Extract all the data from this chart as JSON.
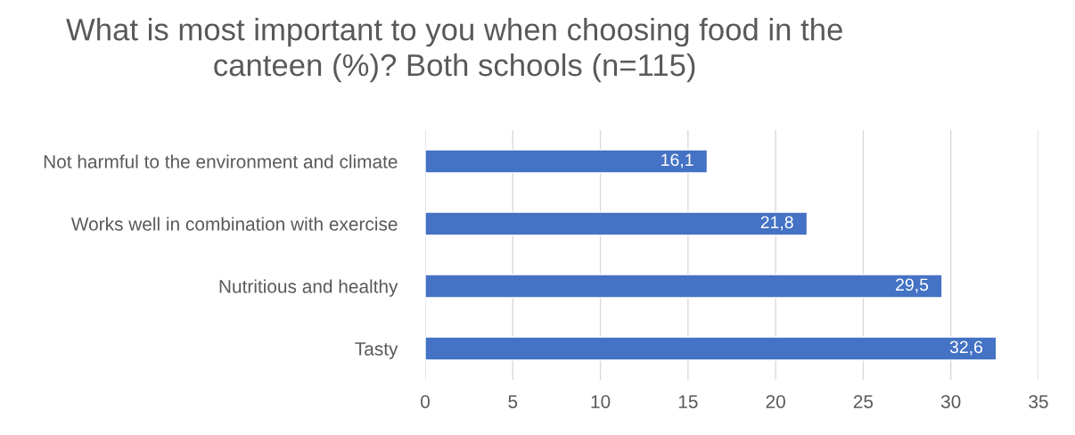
{
  "chart_data": {
    "type": "bar",
    "orientation": "horizontal",
    "title": "What is most important to you when choosing food in the\ncanteen (%)? Both schools (n=115)",
    "categories": [
      "Not harmful to the environment and climate",
      "Works well in combination with exercise",
      "Nutritious and healthy",
      "Tasty"
    ],
    "values": [
      16.1,
      21.8,
      29.5,
      32.6
    ],
    "value_labels": [
      "16,1",
      "21,8",
      "29,5",
      "32,6"
    ],
    "color": "#4472c4",
    "xlim": [
      0,
      35
    ],
    "xticks": [
      0,
      5,
      10,
      15,
      20,
      25,
      30,
      35
    ],
    "grid": "x",
    "legend": false
  }
}
